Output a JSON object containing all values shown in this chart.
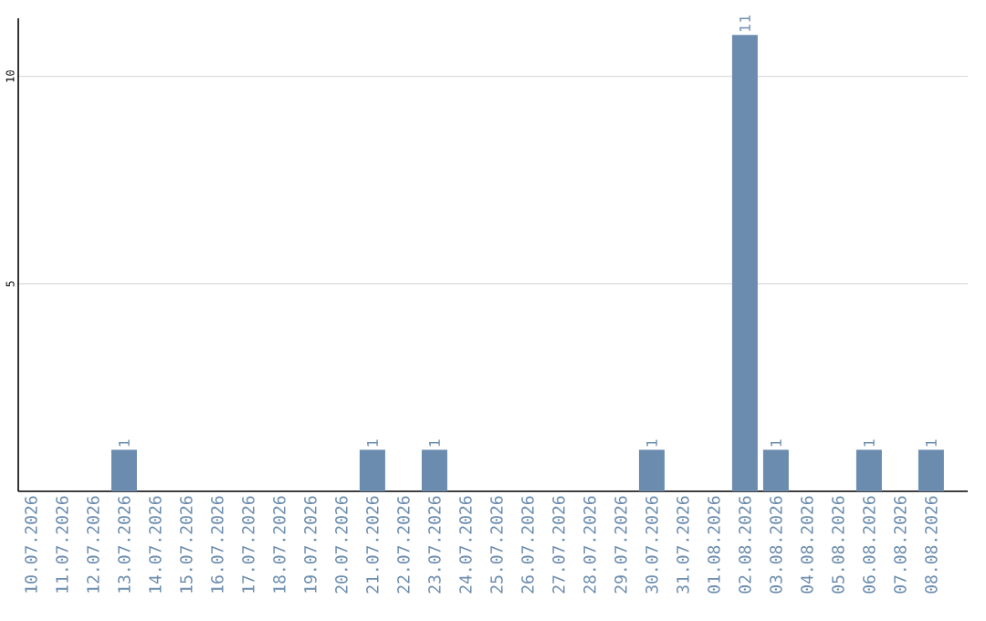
{
  "chart_data": {
    "type": "bar",
    "categories": [
      "10.07.2026",
      "11.07.2026",
      "12.07.2026",
      "13.07.2026",
      "14.07.2026",
      "15.07.2026",
      "16.07.2026",
      "17.07.2026",
      "18.07.2026",
      "19.07.2026",
      "20.07.2026",
      "21.07.2026",
      "22.07.2026",
      "23.07.2026",
      "24.07.2026",
      "25.07.2026",
      "26.07.2026",
      "27.07.2026",
      "28.07.2026",
      "29.07.2026",
      "30.07.2026",
      "31.07.2026",
      "01.08.2026",
      "02.08.2026",
      "03.08.2026",
      "04.08.2026",
      "05.08.2026",
      "06.08.2026",
      "07.08.2026",
      "08.08.2026"
    ],
    "values": [
      0,
      0,
      0,
      1,
      0,
      0,
      0,
      0,
      0,
      0,
      0,
      1,
      0,
      1,
      0,
      0,
      0,
      0,
      0,
      0,
      1,
      0,
      0,
      11,
      1,
      0,
      0,
      1,
      0,
      1
    ],
    "value_labels": [
      null,
      null,
      null,
      "1",
      null,
      null,
      null,
      null,
      null,
      null,
      null,
      "1",
      null,
      "1",
      null,
      null,
      null,
      null,
      null,
      null,
      "1",
      null,
      null,
      "11",
      "1",
      null,
      null,
      "1",
      null,
      "1"
    ],
    "color": "#6b8cae",
    "ylim": [
      0,
      11.4
    ],
    "yticks": [
      5,
      10
    ],
    "grid": "y"
  }
}
